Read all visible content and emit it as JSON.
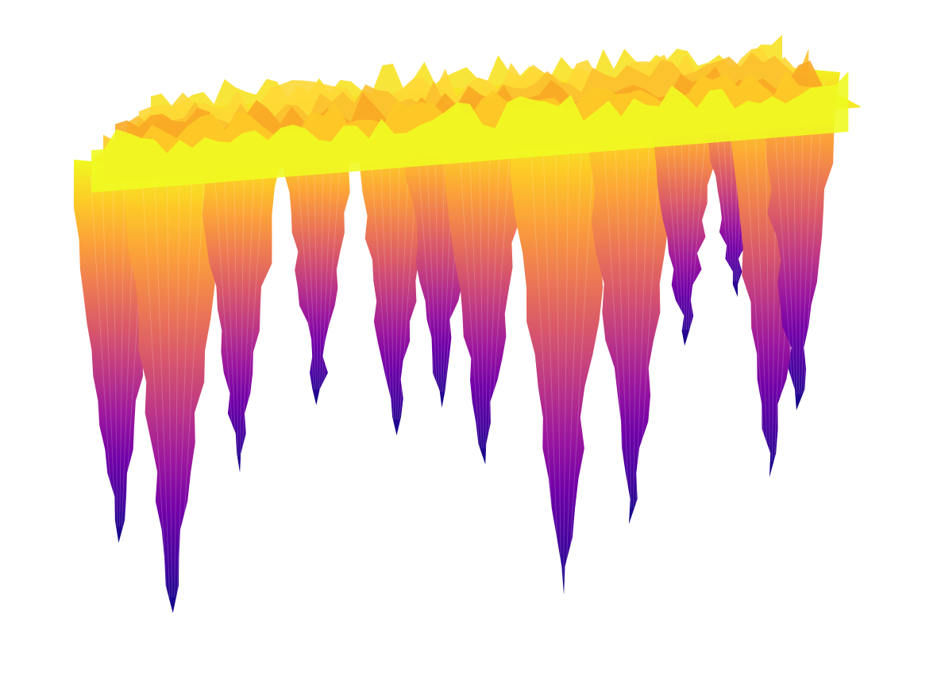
{
  "chart_data": {
    "type": "surface",
    "title": "",
    "colorscale": "plasma",
    "colorscale_stops": [
      "#0d0887",
      "#46039f",
      "#7201a8",
      "#9c179e",
      "#bd3786",
      "#d8576b",
      "#ed7953",
      "#fb9f3a",
      "#fdca26",
      "#f0f921"
    ],
    "showscale": false,
    "axes_visible": false,
    "background": "#ffffff",
    "z_range": [
      0,
      1
    ],
    "surface_top_z": 0.9,
    "valleys": [
      {
        "x": 0.05,
        "y": 0.0,
        "depth": 0.75
      },
      {
        "x": 0.12,
        "y": 0.0,
        "depth": 0.95
      },
      {
        "x": 0.2,
        "y": 0.08,
        "depth": 0.6
      },
      {
        "x": 0.3,
        "y": 0.18,
        "depth": 0.45
      },
      {
        "x": 0.4,
        "y": 0.2,
        "depth": 0.55
      },
      {
        "x": 0.46,
        "y": 0.3,
        "depth": 0.5
      },
      {
        "x": 0.52,
        "y": 0.22,
        "depth": 0.65
      },
      {
        "x": 0.62,
        "y": 0.1,
        "depth": 1.0
      },
      {
        "x": 0.72,
        "y": 0.28,
        "depth": 0.85
      },
      {
        "x": 0.8,
        "y": 0.4,
        "depth": 0.4
      },
      {
        "x": 0.88,
        "y": 0.55,
        "depth": 0.3
      },
      {
        "x": 0.94,
        "y": 0.62,
        "depth": 0.8
      },
      {
        "x": 1.0,
        "y": 0.8,
        "depth": 0.65
      }
    ]
  }
}
